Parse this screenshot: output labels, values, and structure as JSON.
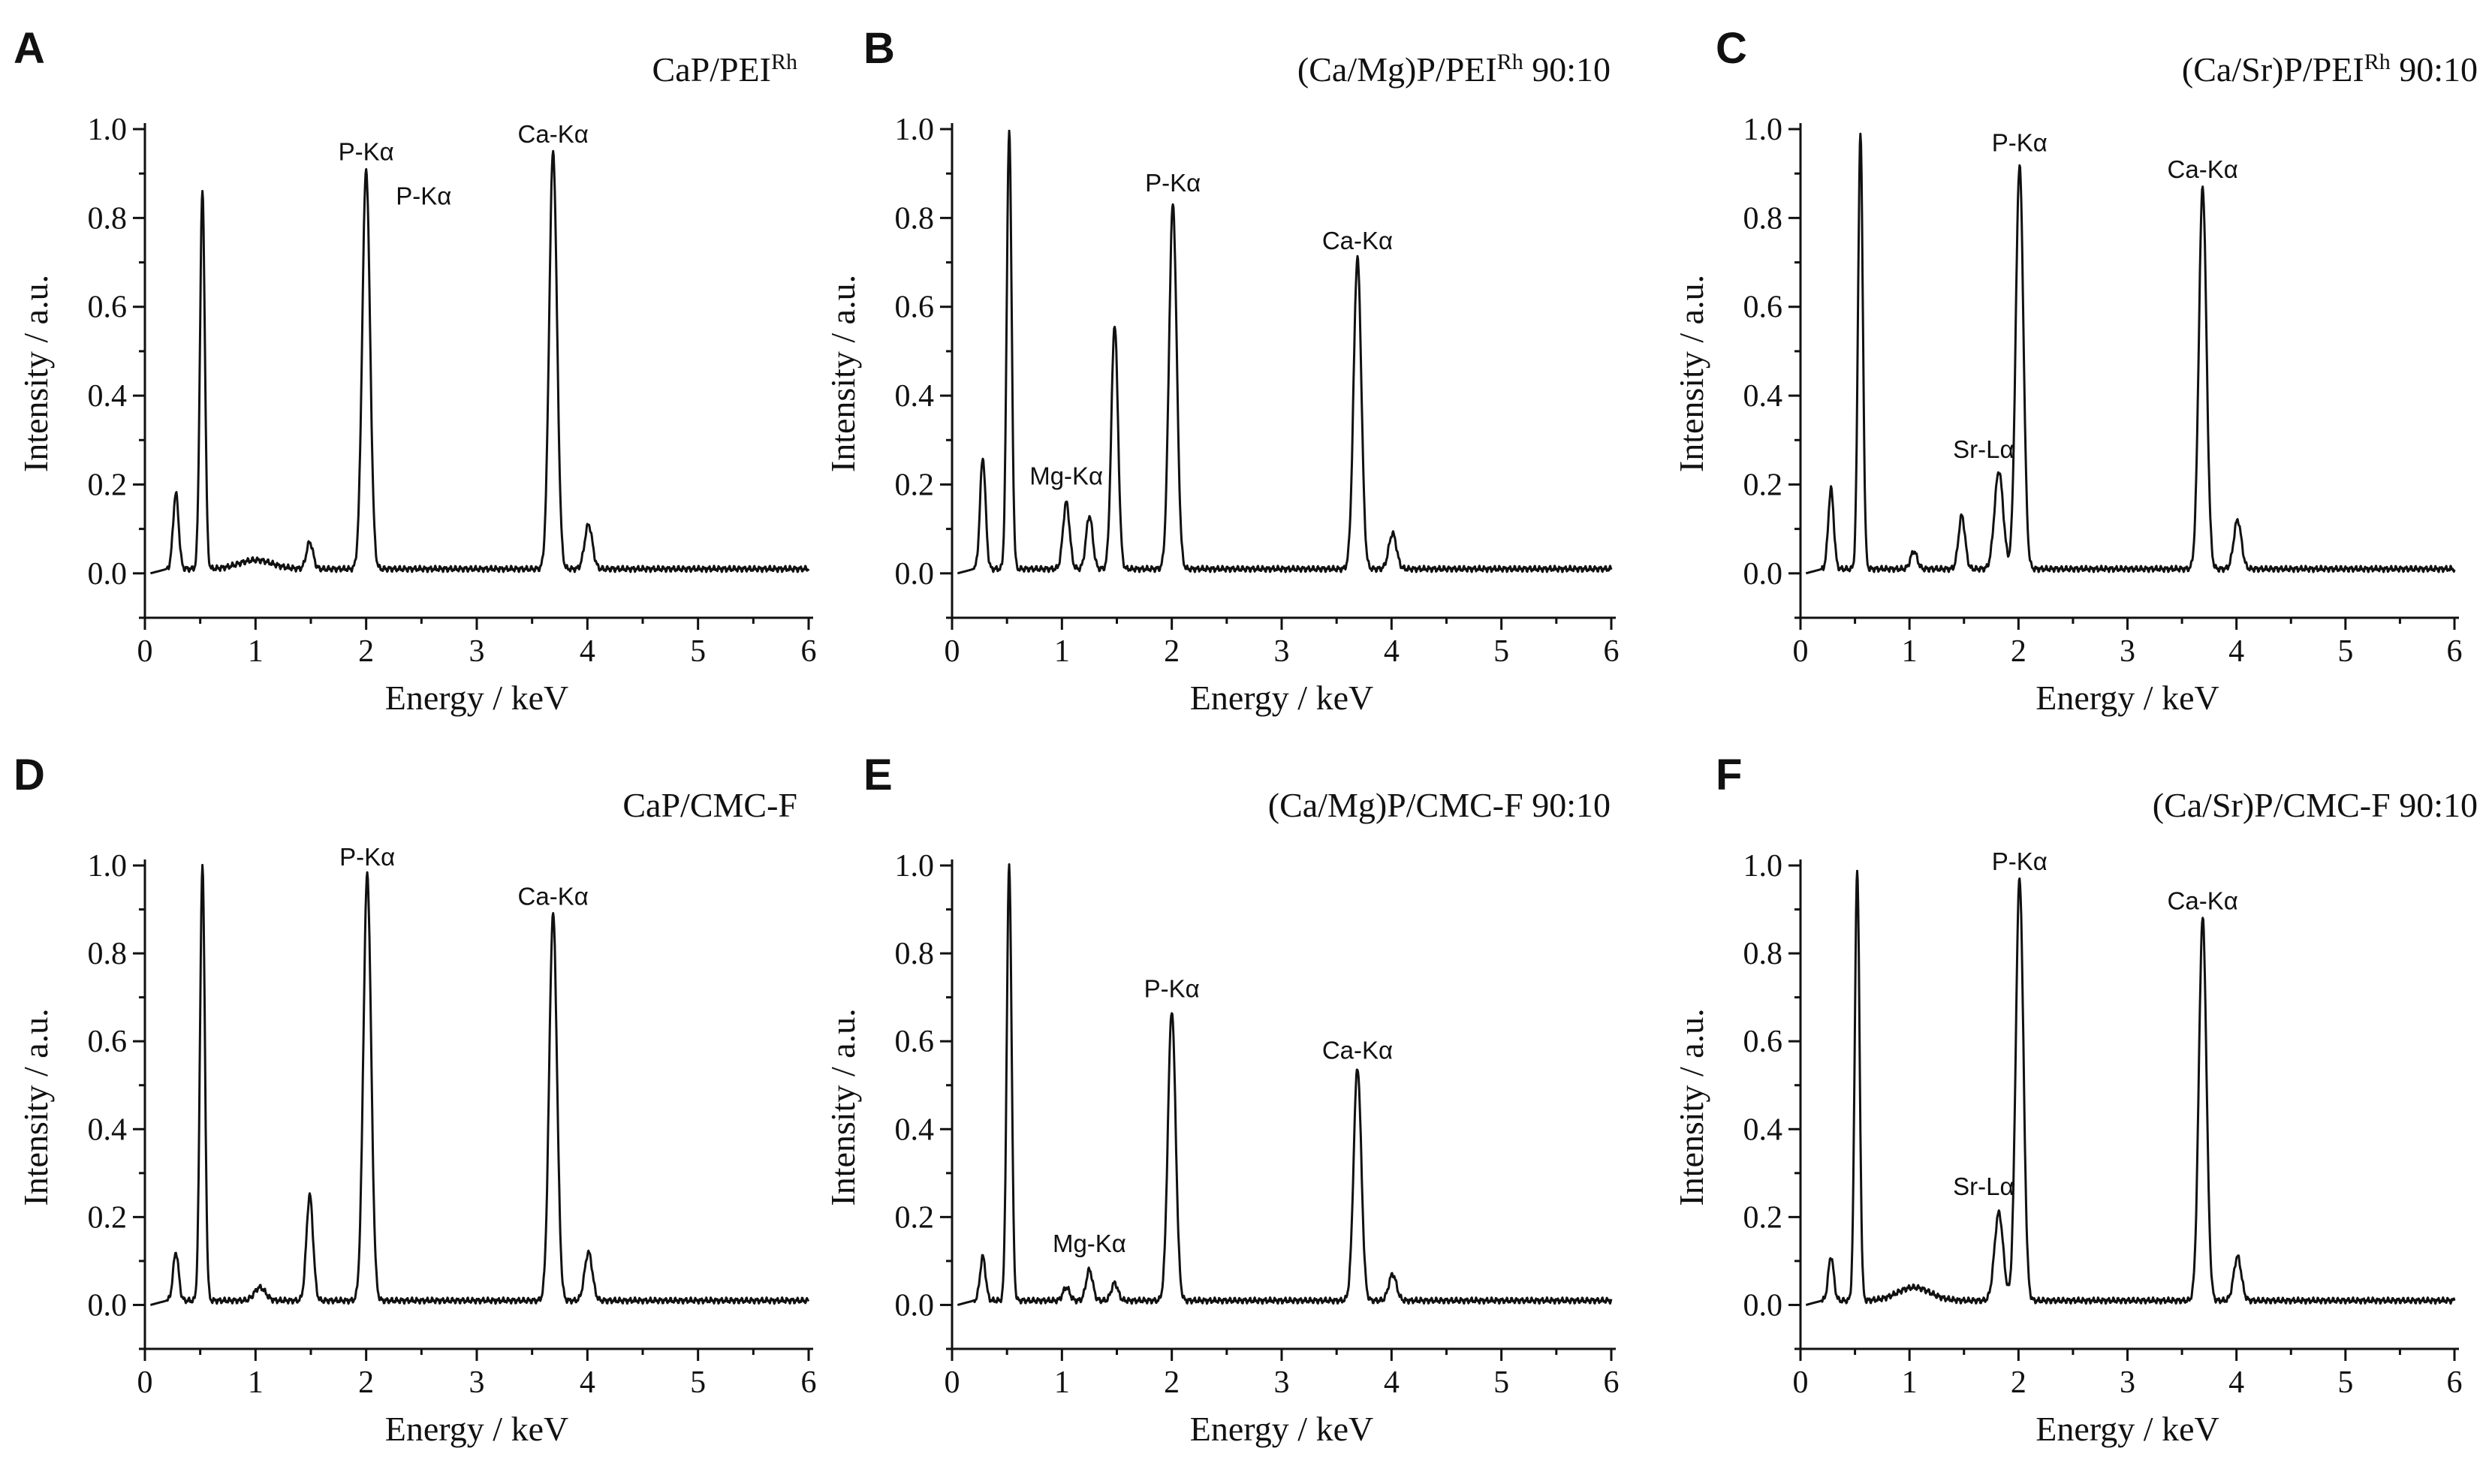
{
  "figure": {
    "x_axis_label": "Energy / keV",
    "y_axis_label": "Intensity / a.u."
  },
  "chart_data": [
    {
      "type": "line",
      "panel": "A",
      "title": "CaP/PEI",
      "title_sup": "Rh",
      "title_suffix": "",
      "xlabel": "Energy / keV",
      "ylabel": "Intensity / a.u.",
      "xlim": [
        0,
        6
      ],
      "ylim": [
        -0.1,
        1.0
      ],
      "x_ticks": [
        0,
        1,
        2,
        3,
        4,
        5,
        6
      ],
      "y_ticks": [
        0.0,
        0.2,
        0.4,
        0.6,
        0.8,
        1.0
      ],
      "baseline": 0.01,
      "peaks": [
        {
          "x": 0.28,
          "h": 0.17,
          "w": 0.025
        },
        {
          "x": 0.52,
          "h": 0.85,
          "w": 0.022
        },
        {
          "x": 1.0,
          "h": 0.02,
          "w": 0.15
        },
        {
          "x": 1.49,
          "h": 0.06,
          "w": 0.03
        },
        {
          "x": 2.0,
          "h": 0.9,
          "w": 0.035
        },
        {
          "x": 3.69,
          "h": 0.94,
          "w": 0.035
        },
        {
          "x": 4.01,
          "h": 0.1,
          "w": 0.035
        }
      ],
      "annotations": [
        {
          "text": "P-Kα",
          "x": 2.0,
          "y": 0.93
        },
        {
          "text": "P-Kα",
          "x": 2.52,
          "y": 0.83
        },
        {
          "text": "Ca-Kα",
          "x": 3.69,
          "y": 0.97
        }
      ]
    },
    {
      "type": "line",
      "panel": "B",
      "title": "(Ca/Mg)P/PEI",
      "title_sup": "Rh",
      "title_suffix": " 90:10",
      "xlabel": "Energy / keV",
      "ylabel": "Intensity / a.u.",
      "xlim": [
        0,
        6
      ],
      "ylim": [
        -0.1,
        1.0
      ],
      "x_ticks": [
        0,
        1,
        2,
        3,
        4,
        5,
        6
      ],
      "y_ticks": [
        0.0,
        0.2,
        0.4,
        0.6,
        0.8,
        1.0
      ],
      "baseline": 0.01,
      "peaks": [
        {
          "x": 0.28,
          "h": 0.25,
          "w": 0.025
        },
        {
          "x": 0.52,
          "h": 0.99,
          "w": 0.022
        },
        {
          "x": 1.04,
          "h": 0.15,
          "w": 0.03
        },
        {
          "x": 1.25,
          "h": 0.12,
          "w": 0.03
        },
        {
          "x": 1.48,
          "h": 0.55,
          "w": 0.03
        },
        {
          "x": 2.01,
          "h": 0.82,
          "w": 0.035
        },
        {
          "x": 3.69,
          "h": 0.7,
          "w": 0.035
        },
        {
          "x": 4.01,
          "h": 0.08,
          "w": 0.035
        }
      ],
      "annotations": [
        {
          "text": "Mg-Kα",
          "x": 1.04,
          "y": 0.2
        },
        {
          "text": "P-Kα",
          "x": 2.01,
          "y": 0.86
        },
        {
          "text": "Ca-Kα",
          "x": 3.69,
          "y": 0.73
        }
      ]
    },
    {
      "type": "line",
      "panel": "C",
      "title": "(Ca/Sr)P/PEI",
      "title_sup": "Rh",
      "title_suffix": " 90:10",
      "xlabel": "Energy / keV",
      "ylabel": "Intensity / a.u.",
      "xlim": [
        0,
        6
      ],
      "ylim": [
        -0.1,
        1.0
      ],
      "x_ticks": [
        0,
        1,
        2,
        3,
        4,
        5,
        6
      ],
      "y_ticks": [
        0.0,
        0.2,
        0.4,
        0.6,
        0.8,
        1.0
      ],
      "baseline": 0.01,
      "peaks": [
        {
          "x": 0.28,
          "h": 0.18,
          "w": 0.025
        },
        {
          "x": 0.55,
          "h": 0.98,
          "w": 0.022
        },
        {
          "x": 1.04,
          "h": 0.04,
          "w": 0.03
        },
        {
          "x": 1.48,
          "h": 0.12,
          "w": 0.03
        },
        {
          "x": 1.82,
          "h": 0.22,
          "w": 0.04
        },
        {
          "x": 2.01,
          "h": 0.91,
          "w": 0.035
        },
        {
          "x": 3.69,
          "h": 0.86,
          "w": 0.035
        },
        {
          "x": 4.01,
          "h": 0.11,
          "w": 0.035
        }
      ],
      "annotations": [
        {
          "text": "Sr-Lα",
          "x": 1.68,
          "y": 0.26
        },
        {
          "text": "P-Kα",
          "x": 2.01,
          "y": 0.95
        },
        {
          "text": "Ca-Kα",
          "x": 3.69,
          "y": 0.89
        }
      ]
    },
    {
      "type": "line",
      "panel": "D",
      "title": "CaP/CMC-F",
      "title_sup": "",
      "title_suffix": "",
      "xlabel": "Energy / keV",
      "ylabel": "Intensity / a.u.",
      "xlim": [
        0,
        6
      ],
      "ylim": [
        -0.1,
        1.0
      ],
      "x_ticks": [
        0,
        1,
        2,
        3,
        4,
        5,
        6
      ],
      "y_ticks": [
        0.0,
        0.2,
        0.4,
        0.6,
        0.8,
        1.0
      ],
      "baseline": 0.01,
      "peaks": [
        {
          "x": 0.28,
          "h": 0.11,
          "w": 0.025
        },
        {
          "x": 0.52,
          "h": 0.99,
          "w": 0.022
        },
        {
          "x": 1.04,
          "h": 0.03,
          "w": 0.05
        },
        {
          "x": 1.49,
          "h": 0.24,
          "w": 0.03
        },
        {
          "x": 2.01,
          "h": 0.97,
          "w": 0.035
        },
        {
          "x": 3.69,
          "h": 0.88,
          "w": 0.035
        },
        {
          "x": 4.01,
          "h": 0.11,
          "w": 0.035
        }
      ],
      "annotations": [
        {
          "text": "P-Kα",
          "x": 2.01,
          "y": 1.0
        },
        {
          "text": "Ca-Kα",
          "x": 3.69,
          "y": 0.91
        }
      ]
    },
    {
      "type": "line",
      "panel": "E",
      "title": "(Ca/Mg)P/CMC-F 90:10",
      "title_sup": "",
      "title_suffix": "",
      "xlabel": "Energy / keV",
      "ylabel": "Intensity / a.u.",
      "xlim": [
        0,
        6
      ],
      "ylim": [
        -0.1,
        1.0
      ],
      "x_ticks": [
        0,
        1,
        2,
        3,
        4,
        5,
        6
      ],
      "y_ticks": [
        0.0,
        0.2,
        0.4,
        0.6,
        0.8,
        1.0
      ],
      "baseline": 0.01,
      "peaks": [
        {
          "x": 0.28,
          "h": 0.1,
          "w": 0.025
        },
        {
          "x": 0.52,
          "h": 0.99,
          "w": 0.022
        },
        {
          "x": 1.04,
          "h": 0.03,
          "w": 0.03
        },
        {
          "x": 1.25,
          "h": 0.07,
          "w": 0.03
        },
        {
          "x": 1.48,
          "h": 0.04,
          "w": 0.03
        },
        {
          "x": 2.0,
          "h": 0.66,
          "w": 0.035
        },
        {
          "x": 3.69,
          "h": 0.53,
          "w": 0.035
        },
        {
          "x": 4.01,
          "h": 0.06,
          "w": 0.035
        }
      ],
      "annotations": [
        {
          "text": "Mg-Kα",
          "x": 1.25,
          "y": 0.12
        },
        {
          "text": "P-Kα",
          "x": 2.0,
          "y": 0.7
        },
        {
          "text": "Ca-Kα",
          "x": 3.69,
          "y": 0.56
        }
      ]
    },
    {
      "type": "line",
      "panel": "F",
      "title": "(Ca/Sr)P/CMC-F 90:10",
      "title_sup": "",
      "title_suffix": "",
      "xlabel": "Energy / keV",
      "ylabel": "Intensity / a.u.",
      "xlim": [
        0,
        6
      ],
      "ylim": [
        -0.1,
        1.0
      ],
      "x_ticks": [
        0,
        1,
        2,
        3,
        4,
        5,
        6
      ],
      "y_ticks": [
        0.0,
        0.2,
        0.4,
        0.6,
        0.8,
        1.0
      ],
      "baseline": 0.01,
      "peaks": [
        {
          "x": 0.28,
          "h": 0.1,
          "w": 0.025
        },
        {
          "x": 0.52,
          "h": 0.98,
          "w": 0.022
        },
        {
          "x": 1.04,
          "h": 0.03,
          "w": 0.15
        },
        {
          "x": 1.82,
          "h": 0.2,
          "w": 0.04
        },
        {
          "x": 2.01,
          "h": 0.96,
          "w": 0.035
        },
        {
          "x": 3.69,
          "h": 0.87,
          "w": 0.035
        },
        {
          "x": 4.01,
          "h": 0.1,
          "w": 0.035
        }
      ],
      "annotations": [
        {
          "text": "Sr-Lα",
          "x": 1.68,
          "y": 0.25
        },
        {
          "text": "P-Kα",
          "x": 2.01,
          "y": 0.99
        },
        {
          "text": "Ca-Kα",
          "x": 3.69,
          "y": 0.9
        }
      ]
    }
  ]
}
